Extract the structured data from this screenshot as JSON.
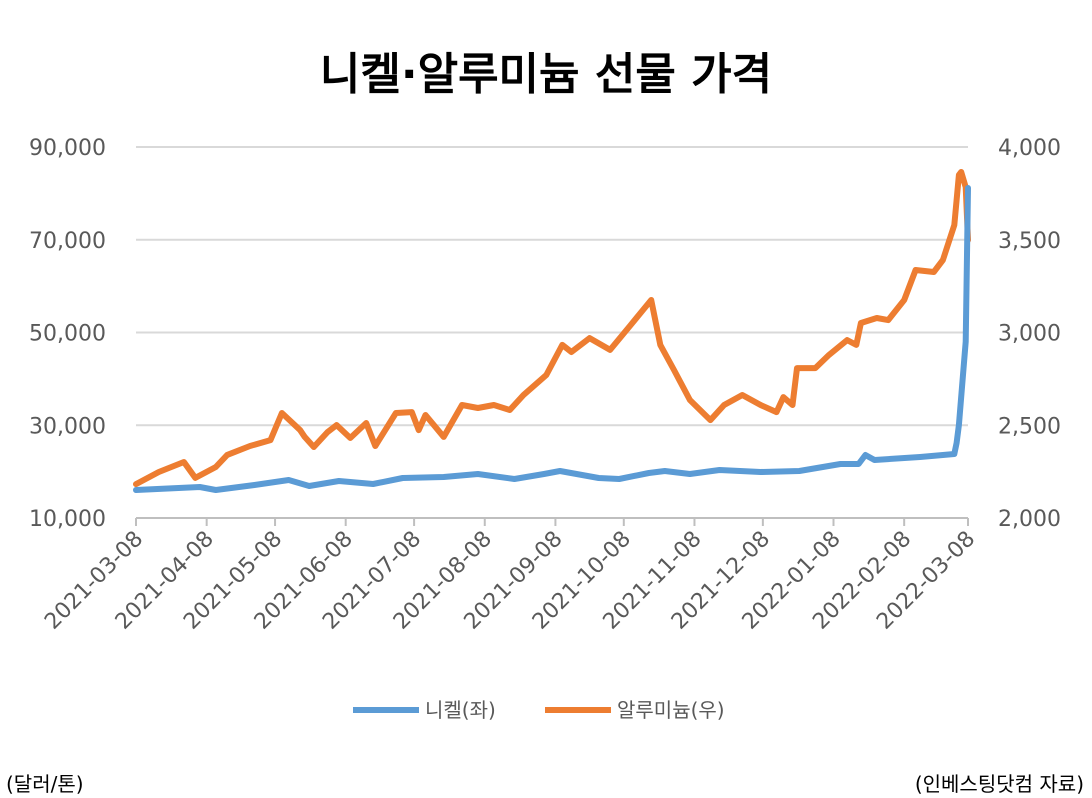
{
  "chart_data": {
    "type": "line",
    "title": "니켈·알루미늄 선물 가격",
    "unit_note": "(달러/톤)",
    "source_note": "(인베스팅닷컴 자료)",
    "x_ticks": [
      "2021-03-08",
      "2021-04-08",
      "2021-05-08",
      "2021-06-08",
      "2021-07-08",
      "2021-08-08",
      "2021-09-08",
      "2021-10-08",
      "2021-11-08",
      "2021-12-08",
      "2022-01-08",
      "2022-02-08",
      "2022-03-08"
    ],
    "xlim": [
      "2021-03-08",
      "2022-03-08"
    ],
    "y_left": {
      "lim": [
        10000,
        90000
      ],
      "ticks": [
        10000,
        30000,
        50000,
        70000,
        90000
      ],
      "tick_labels": [
        "10,000",
        "30,000",
        "50,000",
        "70,000",
        "90,000"
      ]
    },
    "y_right": {
      "lim": [
        2000,
        4000
      ],
      "ticks": [
        2000,
        2500,
        3000,
        3500,
        4000
      ],
      "tick_labels": [
        "2,000",
        "2,500",
        "3,000",
        "3,500",
        "4,000"
      ]
    },
    "grid": true,
    "legend_position": "bottom",
    "series": [
      {
        "name": "니켈(좌)",
        "axis": "left",
        "color": "#5B9BD5",
        "x": [
          "2021-03-08",
          "2021-04-05",
          "2021-04-12",
          "2021-04-29",
          "2021-05-14",
          "2021-05-23",
          "2021-06-05",
          "2021-06-20",
          "2021-07-03",
          "2021-07-21",
          "2021-08-05",
          "2021-08-21",
          "2021-09-03",
          "2021-09-10",
          "2021-09-27",
          "2021-10-06",
          "2021-10-19",
          "2021-10-26",
          "2021-11-06",
          "2021-11-19",
          "2021-12-07",
          "2021-12-24",
          "2022-01-11",
          "2022-01-19",
          "2022-01-22",
          "2022-01-26",
          "2022-02-15",
          "2022-03-02",
          "2022-03-03",
          "2022-03-04",
          "2022-03-07",
          "2022-03-08"
        ],
        "values": [
          16040,
          16680,
          16040,
          17110,
          18190,
          16900,
          17980,
          17330,
          18620,
          18840,
          19490,
          18410,
          19490,
          20130,
          18620,
          18410,
          19700,
          20130,
          19490,
          20350,
          19920,
          20130,
          21640,
          21640,
          23580,
          22500,
          23150,
          23800,
          26170,
          30050,
          48000,
          81150
        ]
      },
      {
        "name": "알루미늄(우)",
        "axis": "right",
        "color": "#ED7D31",
        "x": [
          "2021-03-08",
          "2021-03-18",
          "2021-03-29",
          "2021-04-03",
          "2021-04-12",
          "2021-04-17",
          "2021-04-27",
          "2021-05-06",
          "2021-05-11",
          "2021-05-19",
          "2021-05-21",
          "2021-05-25",
          "2021-05-31",
          "2021-06-04",
          "2021-06-10",
          "2021-06-17",
          "2021-06-21",
          "2021-06-30",
          "2021-07-07",
          "2021-07-10",
          "2021-07-13",
          "2021-07-21",
          "2021-07-29",
          "2021-08-05",
          "2021-08-12",
          "2021-08-19",
          "2021-08-25",
          "2021-09-04",
          "2021-09-11",
          "2021-09-15",
          "2021-09-23",
          "2021-10-02",
          "2021-10-11",
          "2021-10-20",
          "2021-10-24",
          "2021-10-30",
          "2021-11-06",
          "2021-11-15",
          "2021-11-21",
          "2021-11-29",
          "2021-12-07",
          "2021-12-14",
          "2021-12-17",
          "2021-12-21",
          "2021-12-23",
          "2021-12-31",
          "2022-01-06",
          "2022-01-14",
          "2022-01-18",
          "2022-01-20",
          "2022-01-27",
          "2022-02-01",
          "2022-02-08",
          "2022-02-13",
          "2022-02-21",
          "2022-02-25",
          "2022-03-02",
          "2022-03-04",
          "2022-03-05",
          "2022-03-07",
          "2022-03-08"
        ],
        "values": [
          2183,
          2248,
          2302,
          2216,
          2275,
          2340,
          2388,
          2420,
          2566,
          2474,
          2437,
          2383,
          2463,
          2501,
          2431,
          2512,
          2388,
          2566,
          2571,
          2474,
          2555,
          2437,
          2609,
          2593,
          2609,
          2582,
          2663,
          2771,
          2933,
          2895,
          2970,
          2906,
          3040,
          3175,
          2933,
          2798,
          2636,
          2528,
          2609,
          2663,
          2609,
          2571,
          2652,
          2609,
          2808,
          2808,
          2879,
          2959,
          2933,
          3051,
          3078,
          3067,
          3175,
          3337,
          3326,
          3391,
          3579,
          3849,
          3865,
          3784,
          3498
        ]
      }
    ]
  }
}
